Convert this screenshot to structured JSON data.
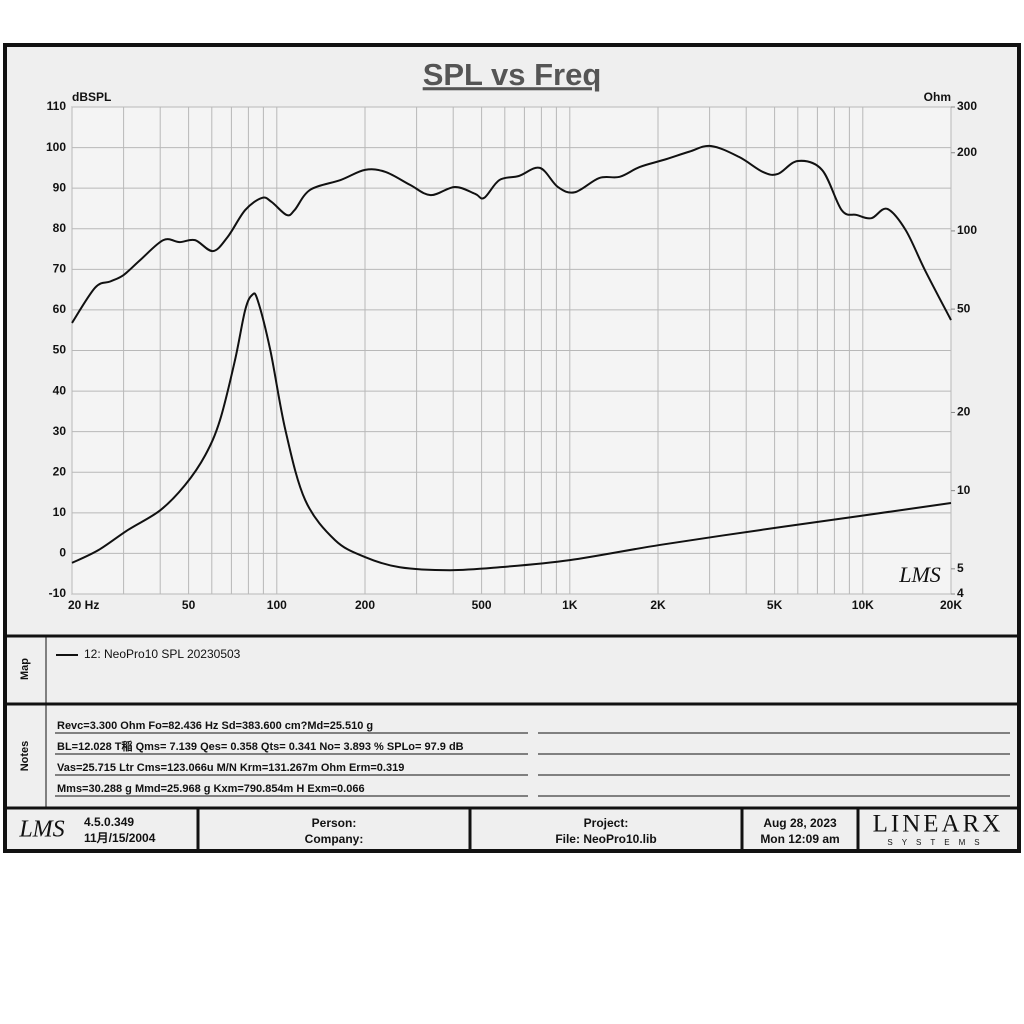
{
  "chart_data": {
    "type": "line",
    "title": "SPL vs Freq",
    "ylabel": "dBSPL",
    "y2label": "Ohm",
    "watermark": "LMS",
    "xlog": true,
    "y2log": true,
    "grid": true,
    "color": "#111111",
    "xlim": [
      20,
      20000
    ],
    "ylim": [
      -10,
      110
    ],
    "y2lim": [
      4,
      300
    ],
    "xticks": [
      {
        "value": 20,
        "label": "20  Hz"
      },
      50,
      100,
      200,
      500,
      {
        "value": 1000,
        "label": "1K"
      },
      {
        "value": 2000,
        "label": "2K"
      },
      {
        "value": 5000,
        "label": "5K"
      },
      {
        "value": 10000,
        "label": "10K"
      },
      {
        "value": 20000,
        "label": "20K"
      }
    ],
    "xgrid": [
      30,
      40,
      60,
      70,
      80,
      90,
      300,
      400,
      600,
      700,
      800,
      900,
      3000,
      4000,
      6000,
      7000,
      8000,
      9000
    ],
    "yticks": [
      -10,
      0,
      10,
      20,
      30,
      40,
      50,
      60,
      70,
      80,
      90,
      100,
      110
    ],
    "y2ticks": [
      4,
      5,
      10,
      20,
      50,
      100,
      200,
      300
    ],
    "series": [
      {
        "name": "12: NeoPro10  SPL 20230503",
        "color": "#111111",
        "x": [
          20,
          24,
          27,
          30,
          34.2,
          41,
          46.6,
          52.6,
          60.5,
          68,
          78,
          89,
          96,
          108,
          115,
          130,
          165,
          200,
          235,
          285,
          335,
          405,
          475,
          510,
          575,
          670,
          790,
          910,
          1040,
          1260,
          1480,
          1730,
          2100,
          2560,
          3030,
          3780,
          4560,
          5130,
          6000,
          7260,
          8470,
          9520,
          10700,
          12100,
          14000,
          16300,
          20000
        ],
        "values": [
          56.8,
          65.5,
          67,
          68.6,
          72.3,
          77.2,
          76.7,
          77.2,
          74.5,
          78,
          84.6,
          87.6,
          86.6,
          83.4,
          84.6,
          89.6,
          92,
          94.5,
          94,
          90.8,
          88.3,
          90.3,
          88.6,
          87.6,
          92,
          93,
          95,
          90.3,
          89,
          92.5,
          92.8,
          95.2,
          97,
          99,
          100.4,
          97.7,
          94,
          93.5,
          96.7,
          94.5,
          84.6,
          83.4,
          82.6,
          84.9,
          79.7,
          69.8,
          57.5
        ]
      },
      {
        "color": "#111111",
        "axis": "y2",
        "x": [
          20,
          24.6,
          31,
          40,
          48.6,
          57,
          64,
          72,
          78,
          82.4,
          86,
          95,
          107,
          125,
          158,
          200,
          263,
          390,
          575,
          1000,
          2030,
          4460,
          9700,
          20000
        ],
        "values": [
          5.27,
          5.9,
          7.05,
          8.4,
          10.5,
          13.7,
          18.7,
          31.8,
          49.6,
          56.7,
          54.2,
          34.8,
          17.1,
          9.2,
          6.45,
          5.55,
          5.07,
          4.94,
          5.07,
          5.4,
          6.18,
          7.05,
          7.98,
          8.96
        ]
      }
    ]
  },
  "map": {
    "label": "Map"
  },
  "notes": {
    "label": "Notes",
    "lines": [
      "Revc=3.300 Ohm  Fo=82.436 Hz  Sd=383.600 cm?Md=25.510 g",
      "BL=12.028 T稲  Qms= 7.139  Qes= 0.358  Qts= 0.341  No= 3.893 %  SPLo= 97.9 dB",
      "Vas=25.715 Ltr  Cms=123.066u M/N  Krm=131.267m Ohm  Erm=0.319",
      "Mms=30.288 g  Mmd=25.968 g  Kxm=790.854m H  Exm=0.066"
    ]
  },
  "footer": {
    "logo": "LMS",
    "version": "4.5.0.349",
    "date": "11月/15/2004",
    "person": "Person:",
    "company": "Company:",
    "project": "Project:",
    "file": "File: NeoPro10.lib",
    "print_date": "Aug 28, 2023",
    "print_time": "Mon 12:09 am",
    "brand": "LINEARX",
    "brand_sub": "SYSTEMS"
  }
}
